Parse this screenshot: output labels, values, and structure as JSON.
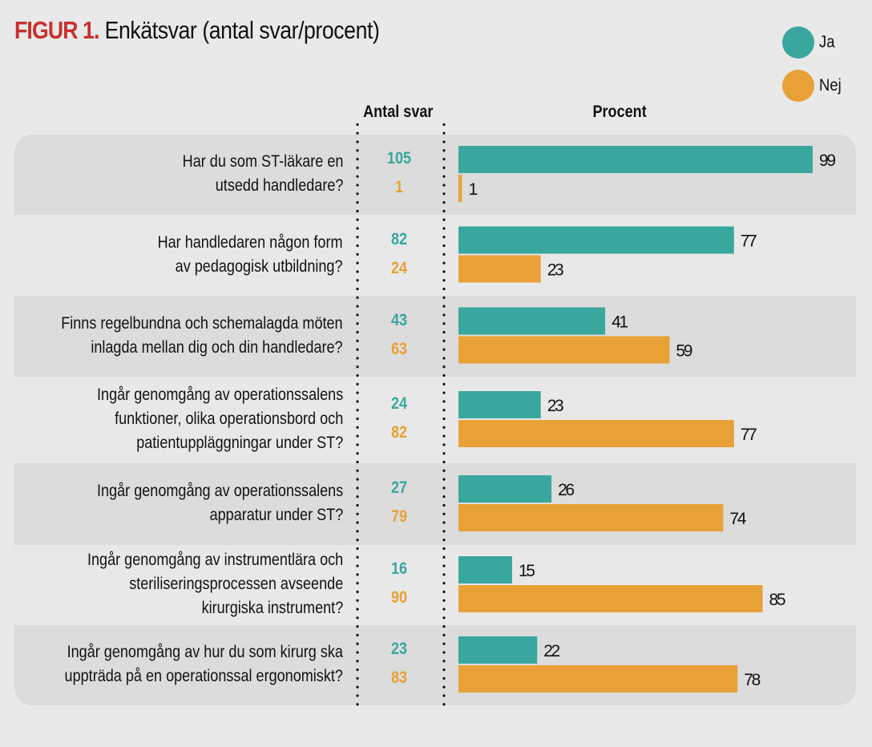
{
  "header": {
    "figure_label": "FIGUR 1.",
    "title": "Enkätsvar (antal svar/procent)"
  },
  "legend": [
    {
      "label": "Ja",
      "color": "#3aa79e"
    },
    {
      "label": "Nej",
      "color": "#e8a136"
    }
  ],
  "columns": {
    "count_header": "Antal svar",
    "percent_header": "Procent"
  },
  "rows": [
    {
      "question": [
        "Har du som ST-läkare en",
        "utsedd handledare?"
      ],
      "ja_count": "105",
      "nej_count": "1"
    },
    {
      "question": [
        "Har handledaren någon form",
        "av pedagogisk utbildning?"
      ],
      "ja_count": "82",
      "nej_count": "24"
    },
    {
      "question": [
        "Finns regelbundna och schemalagda möten",
        "inlagda mellan dig och din handledare?"
      ],
      "ja_count": "43",
      "nej_count": "63"
    },
    {
      "question": [
        "Ingår genomgång av operationssalens",
        "funktioner, olika operationsbord och",
        "patientuppläggningar under ST?"
      ],
      "ja_count": "24",
      "nej_count": "82"
    },
    {
      "question": [
        "Ingår genomgång av operationssalens",
        "apparatur under ST?"
      ],
      "ja_count": "27",
      "nej_count": "79"
    },
    {
      "question": [
        "Ingår genomgång av instrumentlära och",
        "steriliseringsprocessen avseende",
        "kirurgiska instrument?"
      ],
      "ja_count": "16",
      "nej_count": "90"
    },
    {
      "question": [
        "Ingår genomgång av hur du som kirurg ska",
        "uppträda på en operationssal ergonomiskt?"
      ],
      "ja_count": "23",
      "nej_count": "83"
    }
  ],
  "chart_data": {
    "type": "bar",
    "orientation": "horizontal",
    "title": "FIGUR 1. Enkätsvar (antal svar/procent)",
    "xlabel": "Procent",
    "ylabel": "",
    "xlim": [
      0,
      100
    ],
    "grid": false,
    "legend_position": "top-right",
    "categories": [
      "Har du som ST-läkare en utsedd handledare?",
      "Har handledaren någon form av pedagogisk utbildning?",
      "Finns regelbundna och schemalagda möten inlagda mellan dig och din handledare?",
      "Ingår genomgång av operationssalens funktioner, olika operationsbord och patientuppläggningar under ST?",
      "Ingår genomgång av operationssalens apparatur under ST?",
      "Ingår genomgång av instrumentlära och steriliseringsprocessen avseende kirurgiska instrument?",
      "Ingår genomgång av hur du som kirurg ska uppträda på en operationssal ergonomiskt?"
    ],
    "series": [
      {
        "name": "Ja",
        "color": "#3aa79e",
        "values": [
          99,
          77,
          41,
          23,
          26,
          15,
          22
        ],
        "counts": [
          105,
          82,
          43,
          24,
          27,
          16,
          23
        ]
      },
      {
        "name": "Nej",
        "color": "#e8a136",
        "values": [
          1,
          23,
          59,
          77,
          74,
          85,
          78
        ],
        "counts": [
          1,
          24,
          63,
          82,
          79,
          90,
          83
        ]
      }
    ]
  }
}
